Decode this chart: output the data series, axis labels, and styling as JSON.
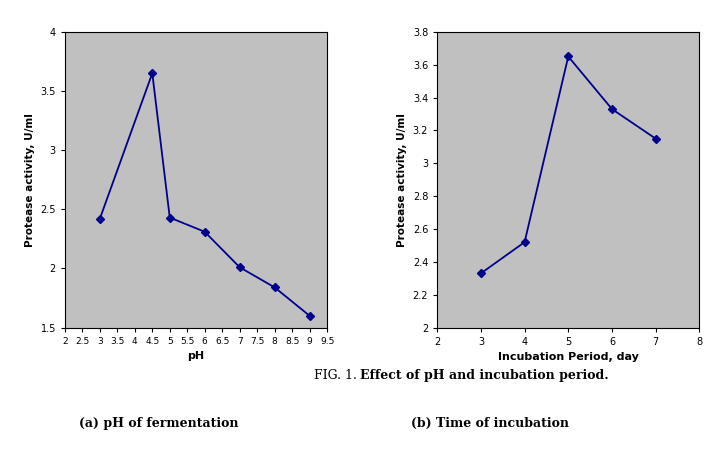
{
  "plot1": {
    "x": [
      3,
      4.5,
      5,
      6,
      7,
      8,
      9
    ],
    "y": [
      2.42,
      3.65,
      2.43,
      2.31,
      2.01,
      1.84,
      1.6
    ],
    "xlim": [
      2,
      9.5
    ],
    "ylim": [
      1.5,
      4.0
    ],
    "xticks": [
      2,
      2.5,
      3,
      3.5,
      4,
      4.5,
      5,
      5.5,
      6,
      6.5,
      7,
      7.5,
      8,
      8.5,
      9,
      9.5
    ],
    "yticks": [
      1.5,
      2.0,
      2.5,
      3.0,
      3.5,
      4.0
    ],
    "xlabel": "pH",
    "ylabel": "Protease activity, U/ml",
    "bg_color": "#c0c0c0"
  },
  "plot2": {
    "x": [
      3,
      4,
      5,
      6,
      7
    ],
    "y": [
      2.33,
      2.52,
      3.65,
      3.33,
      3.15
    ],
    "xlim": [
      2,
      8
    ],
    "ylim": [
      2.0,
      3.8
    ],
    "xticks": [
      2,
      3,
      4,
      5,
      6,
      7,
      8
    ],
    "yticks": [
      2.0,
      2.2,
      2.4,
      2.6,
      2.8,
      3.0,
      3.2,
      3.4,
      3.6,
      3.8
    ],
    "xlabel": "Incubation Period, day",
    "ylabel": "Protease activity, U/ml",
    "bg_color": "#c0c0c0"
  },
  "line_color": "#00008B",
  "marker": "D",
  "marker_size": 4,
  "line_width": 1.3,
  "fig_caption_normal": "FIG. 1. ",
  "fig_caption_bold": "Effect of pH and incubation period.",
  "sub_caption_a": "(a) pH of fermentation",
  "sub_caption_b": "(b) Time of incubation",
  "fig_bg_color": "#ffffff",
  "label_color": "#000000",
  "tick_label_size": 7,
  "axis_label_size": 8
}
